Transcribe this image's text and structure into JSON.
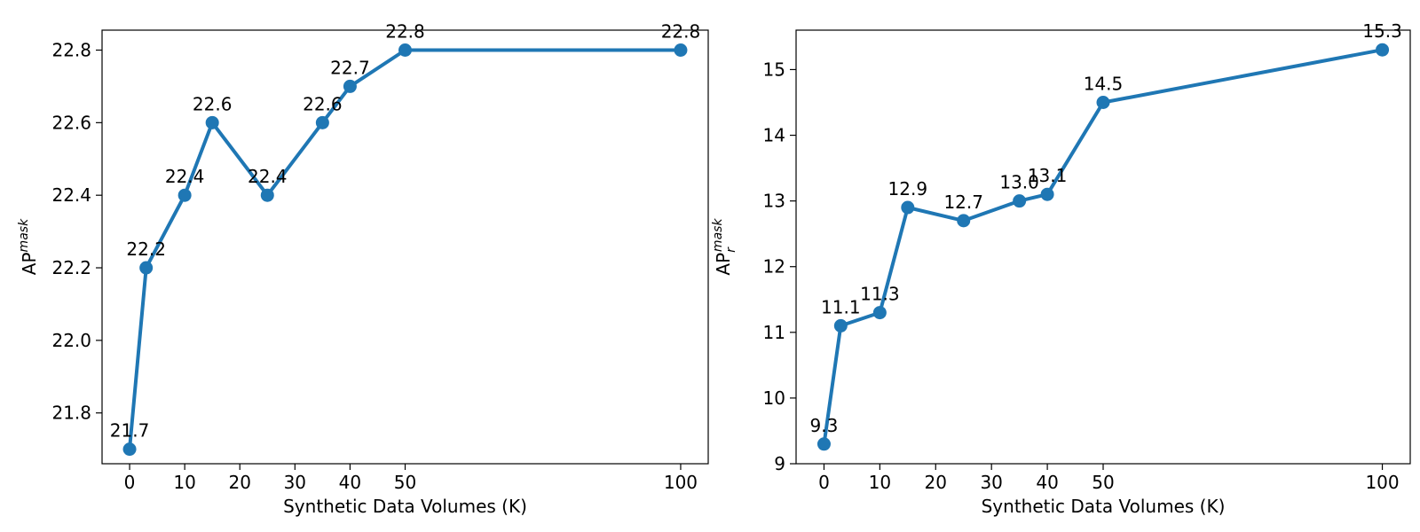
{
  "chart_data": [
    {
      "type": "line",
      "xlabel": "Synthetic Data Volumes (K)",
      "ylabel": {
        "base": "AP",
        "sup": "mask",
        "sub": ""
      },
      "x": [
        0,
        3,
        10,
        15,
        25,
        35,
        40,
        50,
        100
      ],
      "values": [
        21.7,
        22.2,
        22.4,
        22.6,
        22.4,
        22.6,
        22.7,
        22.8,
        22.8
      ],
      "labels": [
        "21.7",
        "22.2",
        "22.4",
        "22.6",
        "22.4",
        "22.6",
        "22.7",
        "22.8",
        "22.8"
      ],
      "xticks": [
        0,
        10,
        20,
        30,
        40,
        50,
        100
      ],
      "yticks": [
        21.8,
        22.0,
        22.2,
        22.4,
        22.6,
        22.8
      ],
      "ytick_labels": [
        "21.8",
        "22.0",
        "22.2",
        "22.4",
        "22.6",
        "22.8"
      ],
      "xlim": [
        -5,
        105
      ],
      "ylim": [
        21.66,
        22.855
      ],
      "color": "#1f77b4",
      "grid": false,
      "legend": "none"
    },
    {
      "type": "line",
      "xlabel": "Synthetic Data Volumes (K)",
      "ylabel": {
        "base": "AP",
        "sup": "mask",
        "sub": "r"
      },
      "x": [
        0,
        3,
        10,
        15,
        25,
        35,
        40,
        50,
        100
      ],
      "values": [
        9.3,
        11.1,
        11.3,
        12.9,
        12.7,
        13.0,
        13.1,
        14.5,
        15.3
      ],
      "labels": [
        "9.3",
        "11.1",
        "11.3",
        "12.9",
        "12.7",
        "13.0",
        "13.1",
        "14.5",
        "15.3"
      ],
      "xticks": [
        0,
        10,
        20,
        30,
        40,
        50,
        100
      ],
      "yticks": [
        9,
        10,
        11,
        12,
        13,
        14,
        15
      ],
      "ytick_labels": [
        "9",
        "10",
        "11",
        "12",
        "13",
        "14",
        "15"
      ],
      "xlim": [
        -5,
        105
      ],
      "ylim": [
        9.0,
        15.6
      ],
      "color": "#1f77b4",
      "grid": false,
      "legend": "none"
    }
  ]
}
